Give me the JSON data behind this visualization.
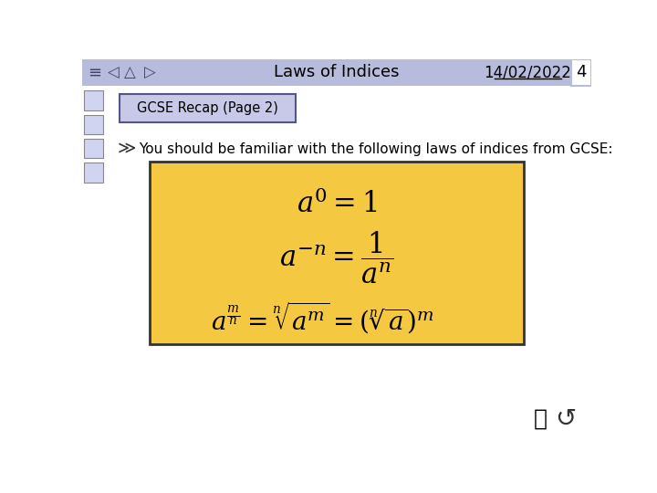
{
  "bg_color": "#ffffff",
  "header_bg": "#b8bcdc",
  "header_title": "Laws of Indices",
  "header_date": "14/02/2022",
  "header_page": "4",
  "subtitle_bg": "#c8c8e8",
  "subtitle_text": "GCSE Recap (Page 2)",
  "subtitle_border": "#555588",
  "bullet_text": "You should be familiar with the following laws of indices from GCSE:",
  "box_bg": "#f5c842",
  "box_border": "#333333",
  "text_color": "#000000",
  "header_text_color": "#000000",
  "sidebar_color": "#d0d4f0"
}
